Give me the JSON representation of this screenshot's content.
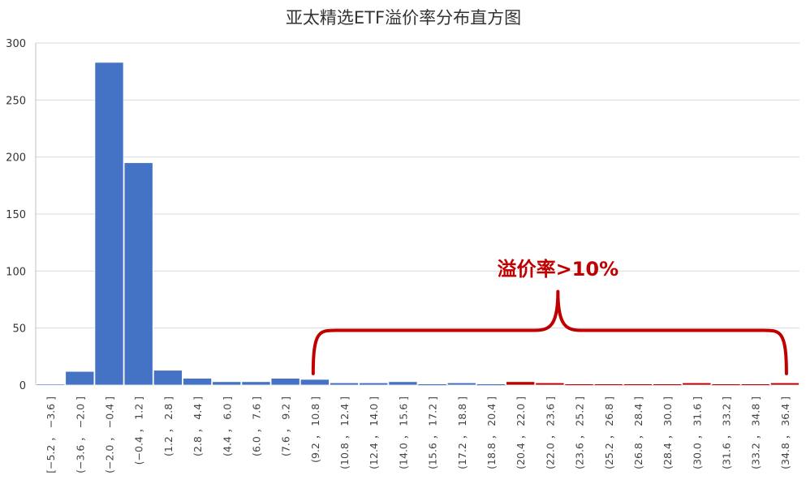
{
  "chart_data": {
    "type": "bar",
    "title": "亚太精选ETF溢价率分布直方图",
    "xlabel": "",
    "ylabel": "",
    "ylim": [
      0,
      300
    ],
    "yticks": [
      0,
      50,
      100,
      150,
      200,
      250,
      300
    ],
    "grid": true,
    "legend": "none",
    "categories": [
      "[−5.2 ， −3.6 ]",
      "(−3.6 ， −2.0 ]",
      "(−2.0 ， −0.4 ]",
      "(−0.4 ， 1.2 ]",
      "(1.2 ， 2.8 ]",
      "(2.8 ， 4.4 ]",
      "(4.4 ， 6.0 ]",
      "(6.0 ， 7.6 ]",
      "(7.6 ， 9.2 ]",
      "(9.2 ， 10.8 ]",
      "(10.8 ， 12.4 ]",
      "(12.4 ， 14.0 ]",
      "(14.0 ， 15.6 ]",
      "(15.6 ， 17.2 ]",
      "(17.2 ， 18.8 ]",
      "(18.8 ， 20.4 ]",
      "(20.4 ， 22.0 ]",
      "(22.0 ， 23.6 ]",
      "(23.6 ， 25.2 ]",
      "(25.2 ， 26.8 ]",
      "(26.8 ， 28.4 ]",
      "(28.4 ， 30.0 ]",
      "(30.0 ， 31.6 ]",
      "(31.6 ， 33.2 ]",
      "(33.2 ， 34.8 ]",
      "(34.8 ， 36.4 ]"
    ],
    "values": [
      1,
      12,
      283,
      195,
      13,
      6,
      3,
      3,
      6,
      5,
      2,
      2,
      3,
      0,
      2,
      0,
      3,
      2,
      0,
      0,
      0,
      0,
      2,
      0,
      0,
      2
    ],
    "bar_colors": [
      "#4472C4",
      "#4472C4",
      "#4472C4",
      "#4472C4",
      "#4472C4",
      "#4472C4",
      "#4472C4",
      "#4472C4",
      "#4472C4",
      "#4472C4",
      "#4472C4",
      "#4472C4",
      "#4472C4",
      "#4472C4",
      "#4472C4",
      "#4472C4",
      "#C00000",
      "#C00000",
      "#C00000",
      "#C00000",
      "#C00000",
      "#C00000",
      "#C00000",
      "#C00000",
      "#C00000",
      "#C00000"
    ],
    "annotation": {
      "text": "溢价率>10%",
      "color": "#C00000",
      "from_category": 9,
      "to_category": 25
    }
  },
  "colors": {
    "bar_default": "#4472C4",
    "highlight": "#C00000",
    "grid": "#D9D9D9",
    "axis": "#BFBFBF"
  }
}
